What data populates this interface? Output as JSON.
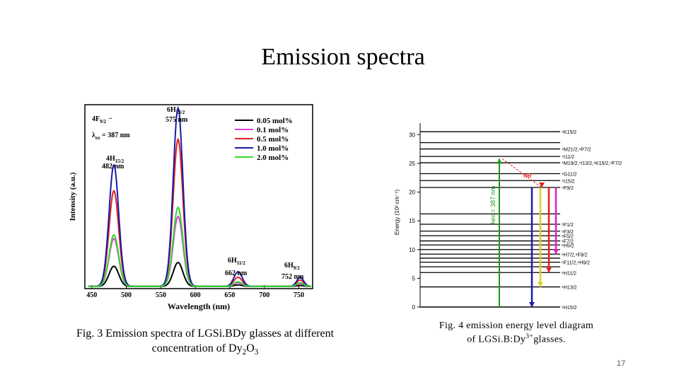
{
  "slide": {
    "title": "Emission spectra",
    "page_number": "17"
  },
  "captions": {
    "fig3": {
      "prefix": "Fig. 3 Emission spectra of LGSi.BDy glasses at different concentration of Dy",
      "sub1": "2",
      "mid": "O",
      "sub2": "3"
    },
    "fig4": {
      "prefix": "Fig. 4 emission energy level diagram of LGSi.B:Dy",
      "sup": "3+",
      "suffix": "glasses."
    }
  },
  "colors": {
    "s005": "#000000",
    "s01": "#e040d8",
    "s05": "#e02020",
    "s10": "#1a1aa8",
    "s20": "#30d830",
    "excitation": "#1a9a1a",
    "nr": "#e02020",
    "level_line": "#000000"
  },
  "chart_data": [
    {
      "type": "line",
      "xlabel": "Wavelength (nm)",
      "ylabel": "Intensity (a.u.)",
      "xlim": [
        440,
        770
      ],
      "ylim": [
        0,
        100
      ],
      "x_ticks": [
        450,
        500,
        550,
        600,
        650,
        700,
        750
      ],
      "peaks_nm": [
        482,
        575,
        662,
        752
      ],
      "series": [
        {
          "name": "0.05 mol%",
          "color": "#000000",
          "peaks": [
            11,
            13,
            0.8,
            0.5
          ]
        },
        {
          "name": "0.1 mol%",
          "color": "#e040d8",
          "peaks": [
            26,
            38,
            2,
            1.5
          ]
        },
        {
          "name": "0.5 mol%",
          "color": "#e02020",
          "peaks": [
            52,
            80,
            5,
            3.5
          ]
        },
        {
          "name": "1.0 mol%",
          "color": "#1a1aa8",
          "peaks": [
            66,
            97,
            8,
            5
          ]
        },
        {
          "name": "2.0 mol%",
          "color": "#30d830",
          "peaks": [
            28,
            43,
            2.5,
            2
          ]
        }
      ],
      "annotations": {
        "f92": {
          "main": "4F",
          "sub": "9/2",
          "arrow": "→"
        },
        "lambda_ex": {
          "main": "λ",
          "sub": "ex",
          "rest": " = 387 nm"
        },
        "h152": {
          "main": "4H",
          "sub": "15/2",
          "nm": "482 nm"
        },
        "h132": {
          "main": "6H",
          "sub": "13/2",
          "nm": "575 nm"
        },
        "h112": {
          "main": "6H",
          "sub": "11/2",
          "nm": "662 nm"
        },
        "h92": {
          "main": "6H",
          "sub": "9/2",
          "nm": "752 nm"
        }
      }
    },
    {
      "type": "energy_level_diagram",
      "ylabel": "Energy (10³ cm⁻¹)",
      "ylim": [
        0,
        32
      ],
      "y_ticks": [
        0,
        5,
        10,
        15,
        20,
        25,
        30
      ],
      "levels": [
        0,
        3.5,
        6,
        7,
        7.8,
        8.5,
        9.2,
        10,
        10.8,
        11.5,
        12.4,
        13.2,
        14.4,
        16.2,
        20.8,
        22.0,
        23.2,
        25.1,
        26.2,
        27.5,
        28.6,
        30.5
      ],
      "level_labels": [
        {
          "text": "⁶H15/2",
          "at": 0
        },
        {
          "text": "⁶H13/2",
          "at": 3.5
        },
        {
          "text": "⁶H11/2",
          "at": 6
        },
        {
          "text": "⁶F11/2,⁶H9/2",
          "at": 7.8
        },
        {
          "text": "⁶H7/2,⁶F9/2",
          "at": 9.2
        },
        {
          "text": "⁶H5/2",
          "at": 10.8
        },
        {
          "text": "⁶F7/2",
          "at": 11.5
        },
        {
          "text": "⁶F5/2",
          "at": 12.4
        },
        {
          "text": "⁶F3/2",
          "at": 13.2
        },
        {
          "text": "⁶F1/2",
          "at": 14.4
        },
        {
          "text": "⁴F9/2",
          "at": 20.8
        },
        {
          "text": "⁴I15/2",
          "at": 22.0
        },
        {
          "text": "⁴G11/2",
          "at": 23.2
        },
        {
          "text": "⁴M19/2,⁴I13/2,⁴K15/2,⁴F7/2",
          "at": 25.1
        },
        {
          "text": "⁴I11/2",
          "at": 26.2
        },
        {
          "text": "⁴M21/2,⁶P7/2",
          "at": 27.5
        },
        {
          "text": "⁶K15/2",
          "at": 30.5
        }
      ],
      "excitation": {
        "label": "λex = 387 nm",
        "from": 0,
        "to": 25.8
      },
      "nonradiative": {
        "label": "NR",
        "from": 25.8,
        "to": 20.8
      },
      "emissions": [
        {
          "color": "#1a1aa8",
          "from": 20.8,
          "to": 0
        },
        {
          "color": "#e0d020",
          "from": 20.8,
          "to": 3.5
        },
        {
          "color": "#e02020",
          "from": 20.8,
          "to": 6
        },
        {
          "color": "#e020c0",
          "from": 20.8,
          "to": 9.2
        }
      ]
    }
  ]
}
